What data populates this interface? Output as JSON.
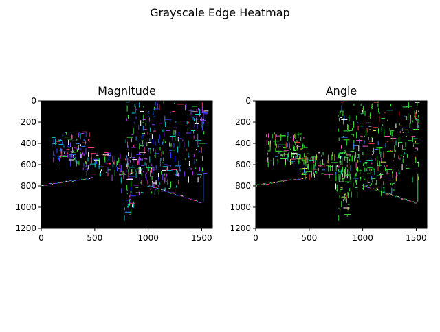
{
  "figure": {
    "suptitle": "Grayscale Edge Heatmap"
  },
  "chart_data": [
    {
      "type": "heatmap",
      "title": "Magnitude",
      "xlabel": "",
      "ylabel": "",
      "xlim": [
        0,
        1600
      ],
      "ylim": [
        1200,
        0
      ],
      "xticks": [
        0,
        500,
        1000,
        1500
      ],
      "yticks": [
        0,
        200,
        400,
        600,
        800,
        1000,
        1200
      ],
      "grid": false,
      "background": "#000000",
      "edge_colors": [
        "#3b3bff",
        "#7a3cff",
        "#c03cff",
        "#2a8cff",
        "#00d0d0",
        "#37e837",
        "#ffffff",
        "#ff3b7a"
      ]
    },
    {
      "type": "heatmap",
      "title": "Angle",
      "xlabel": "",
      "ylabel": "",
      "xlim": [
        0,
        1600
      ],
      "ylim": [
        1200,
        0
      ],
      "xticks": [
        0,
        500,
        1000,
        1500
      ],
      "yticks": [
        0,
        200,
        400,
        600,
        800,
        1000,
        1200
      ],
      "grid": false,
      "background": "#000000",
      "edge_colors": [
        "#37e837",
        "#2ad02a",
        "#ffffff",
        "#ff3b3b",
        "#ff50c8",
        "#3b8cff",
        "#00d8a0",
        "#e0e040"
      ]
    }
  ]
}
